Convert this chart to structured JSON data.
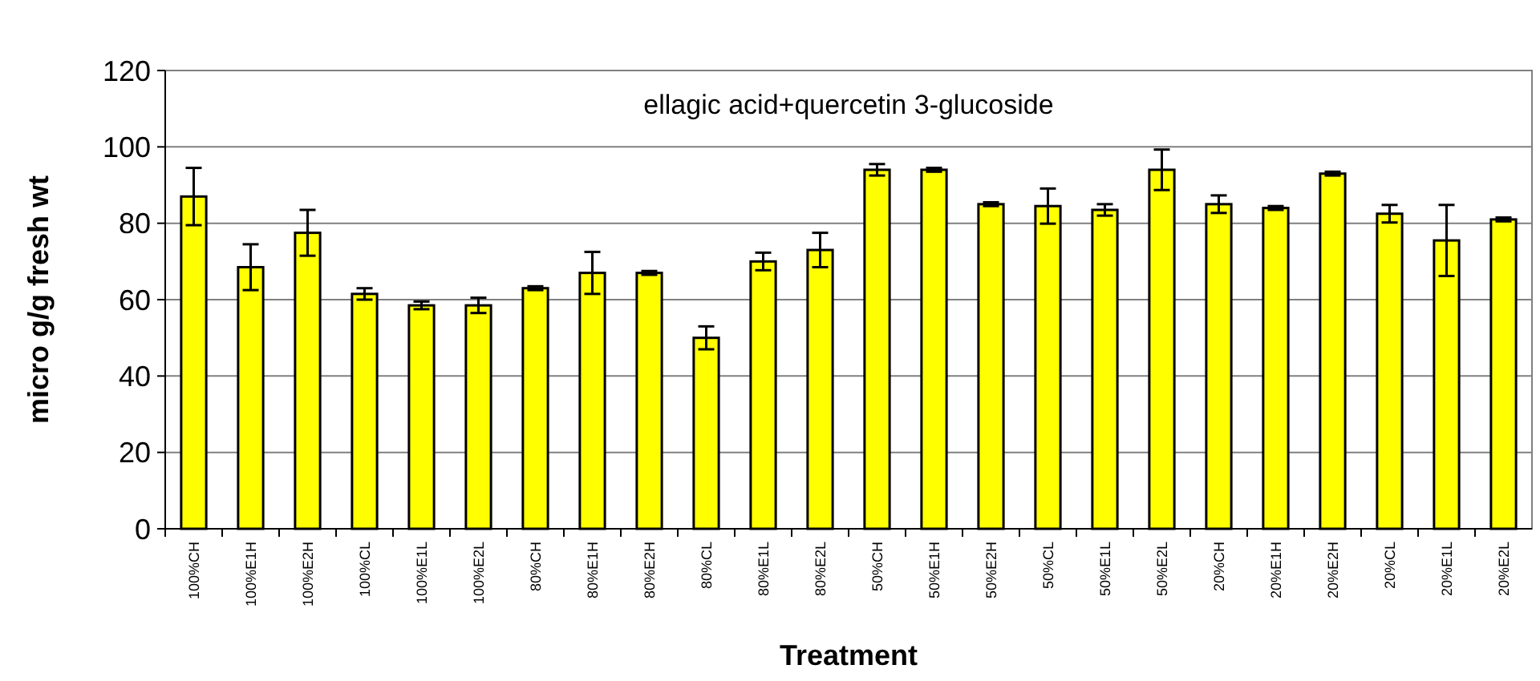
{
  "chart_data": {
    "type": "bar",
    "title": "ellagic acid+quercetin 3-glucoside",
    "xlabel": "Treatment",
    "ylabel": "micro g/g fresh wt",
    "categories": [
      "100%CH",
      "100%E1H",
      "100%E2H",
      "100%CL",
      "100%E1L",
      "100%E2L",
      "80%CH",
      "80%E1H",
      "80%E2H",
      "80%CL",
      "80%E1L",
      "80%E2L",
      "50%CH",
      "50%E1H",
      "50%E2H",
      "50%CL",
      "50%E1L",
      "50%E2L",
      "20%CH",
      "20%E1H",
      "20%E2H",
      "20%CL",
      "20%E1L",
      "20%E2L"
    ],
    "values": [
      87,
      68.5,
      77.5,
      61.5,
      58.5,
      58.5,
      63,
      67,
      67,
      50,
      70,
      73,
      94,
      94,
      85,
      84.5,
      83.5,
      94,
      85,
      84,
      93,
      82.5,
      75.5,
      81
    ],
    "errors": [
      7.5,
      6,
      6,
      1.5,
      1,
      2,
      0.5,
      5.5,
      0.5,
      3,
      2.3,
      4.5,
      1.5,
      0.5,
      0.5,
      4.6,
      1.5,
      5.3,
      2.3,
      0.5,
      0.5,
      2.3,
      9.3,
      0.5
    ],
    "color": "#ffff00",
    "ylim": [
      0,
      120
    ],
    "yticks": [
      0,
      20,
      40,
      60,
      80,
      100,
      120
    ],
    "grid": "y"
  }
}
